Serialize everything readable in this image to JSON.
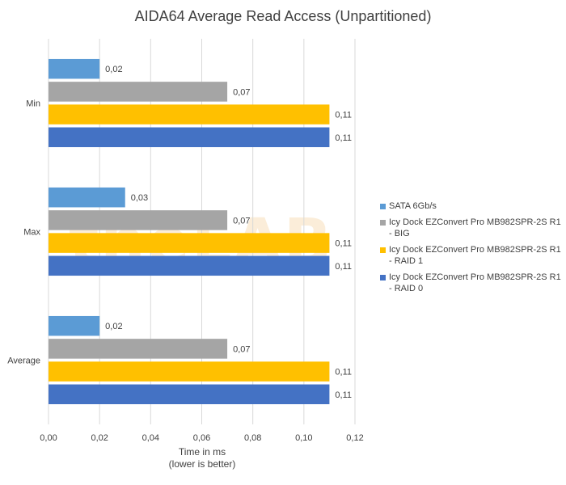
{
  "chart_data": {
    "type": "bar",
    "orientation": "horizontal",
    "title": "AIDA64 Average Read Access (Unpartitioned)",
    "xlabel": "Time in ms",
    "xlabel_note": "(lower is better)",
    "categories": [
      "Min",
      "Max",
      "Average"
    ],
    "xlim": [
      0,
      0.12
    ],
    "xticks": [
      "0,00",
      "0,02",
      "0,04",
      "0,06",
      "0,08",
      "0,10",
      "0,12"
    ],
    "xtick_values": [
      0,
      0.02,
      0.04,
      0.06,
      0.08,
      0.1,
      0.12
    ],
    "grid": true,
    "legend_position": "right",
    "series": [
      {
        "name": "SATA 6Gb/s",
        "color": "#5b9bd5",
        "values": [
          0.02,
          0.03,
          0.02
        ],
        "labels": [
          "0,02",
          "0,03",
          "0,02"
        ]
      },
      {
        "name": "Icy Dock EZConvert Pro MB982SPR-2S R1 - BIG",
        "color": "#a5a5a5",
        "values": [
          0.07,
          0.07,
          0.07
        ],
        "labels": [
          "0,07",
          "0,07",
          "0,07"
        ]
      },
      {
        "name": "Icy Dock EZConvert Pro MB982SPR-2S R1 - RAID 1",
        "color": "#ffc000",
        "values": [
          0.11,
          0.11,
          0.11
        ],
        "labels": [
          "0,11",
          "0,11",
          "0,11"
        ]
      },
      {
        "name": "Icy Dock EZConvert Pro MB982SPR-2S R1 - RAID 0",
        "color": "#4472c4",
        "values": [
          0.11,
          0.11,
          0.11
        ],
        "labels": [
          "0,11",
          "0,11",
          "0,11"
        ]
      }
    ]
  },
  "watermark": {
    "text": "theLAB"
  }
}
